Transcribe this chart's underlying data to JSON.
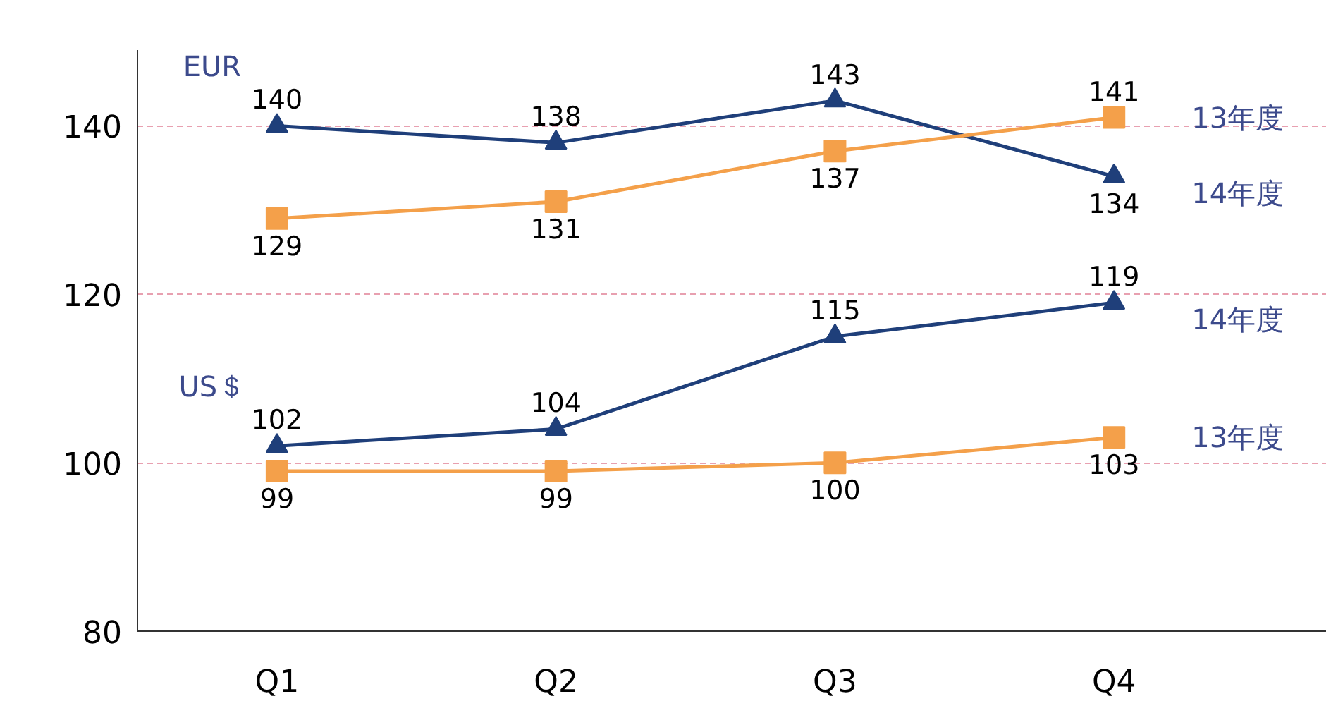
{
  "chart_data": {
    "type": "line",
    "categories": [
      "Q1",
      "Q2",
      "Q3",
      "Q4"
    ],
    "series": [
      {
        "name": "14年度",
        "color": "#1f3f7a",
        "marker": "triangle",
        "values": [
          140,
          138,
          143,
          134
        ]
      },
      {
        "name": "13年度",
        "color": "#f4a04a",
        "marker": "square",
        "values": [
          129,
          131,
          137,
          141
        ]
      },
      {
        "name": "14年度",
        "color": "#1f3f7a",
        "marker": "triangle",
        "values": [
          102,
          104,
          115,
          119
        ]
      },
      {
        "name": "13年度",
        "color": "#f4a04a",
        "marker": "square",
        "values": [
          99,
          99,
          100,
          103
        ]
      }
    ],
    "ylim": [
      80,
      149
    ],
    "yticks": [
      80,
      100,
      120,
      140
    ],
    "grid": "y",
    "data_labels": true,
    "annotations": [
      "EUR",
      "US＄"
    ]
  }
}
